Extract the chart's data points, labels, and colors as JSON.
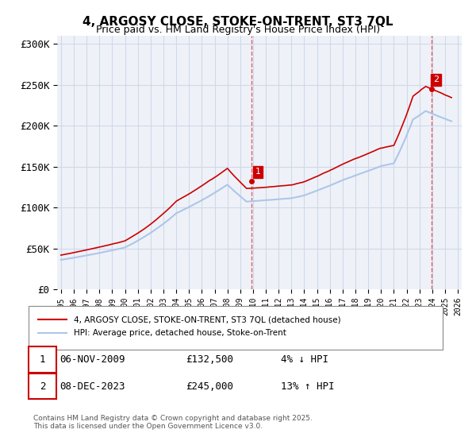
{
  "title_line1": "4, ARGOSY CLOSE, STOKE-ON-TRENT, ST3 7QL",
  "title_line2": "Price paid vs. HM Land Registry's House Price Index (HPI)",
  "x_start_year": 1995,
  "x_end_year": 2026,
  "y_ticks": [
    0,
    50000,
    100000,
    150000,
    200000,
    250000,
    300000
  ],
  "y_tick_labels": [
    "£0",
    "£50K",
    "£100K",
    "£150K",
    "£200K",
    "£250K",
    "£300K"
  ],
  "y_max": 310000,
  "purchase1_date": "06-NOV-2009",
  "purchase1_price": 132500,
  "purchase1_pct": "4%",
  "purchase1_dir": "↓",
  "purchase2_date": "08-DEC-2023",
  "purchase2_price": 245000,
  "purchase2_pct": "13%",
  "purchase2_dir": "↑",
  "legend_label_red": "4, ARGOSY CLOSE, STOKE-ON-TRENT, ST3 7QL (detached house)",
  "legend_label_blue": "HPI: Average price, detached house, Stoke-on-Trent",
  "footer": "Contains HM Land Registry data © Crown copyright and database right 2025.\nThis data is licensed under the Open Government Licence v3.0.",
  "hpi_color": "#aec6e8",
  "price_color": "#cc0000",
  "vline_color": "#e06060",
  "bg_color": "#ffffff",
  "grid_color": "#d0d8e8",
  "marker1_x": 2009.85,
  "marker2_x": 2023.93
}
